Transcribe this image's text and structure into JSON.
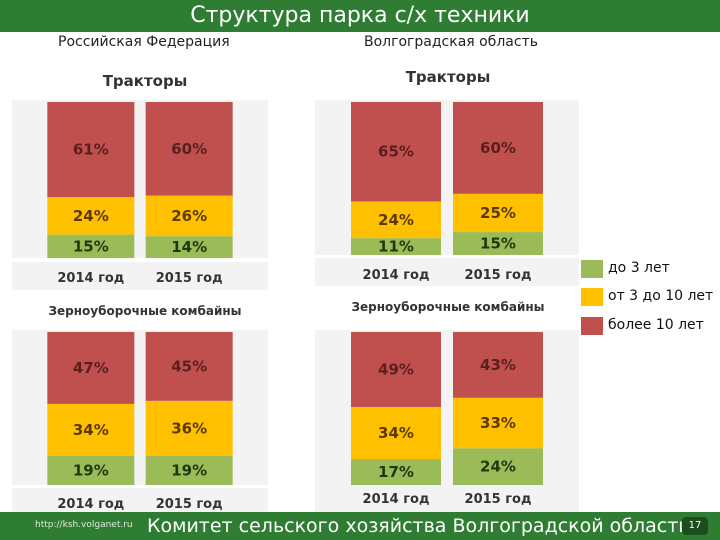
{
  "slide": {
    "title": "Структура парка с/х техники",
    "region_left": "Российская Федерация",
    "region_right": "Волгоградская область",
    "footer_url": "http://ksh.volganet.ru",
    "footer_org": "Комитет сельского хозяйства Волгоградской области",
    "page_number": "17"
  },
  "legend": [
    {
      "label": "до 3 лет",
      "color": "#9bbb59"
    },
    {
      "label": "от 3 до 10 лет",
      "color": "#ffc000"
    },
    {
      "label": "более 10 лет",
      "color": "#c0504d"
    }
  ],
  "chart_data": [
    {
      "type": "bar",
      "stacked": true,
      "region": "Российская Федерация",
      "title": "Тракторы",
      "categories": [
        "2014 год",
        "2015 год"
      ],
      "series": [
        {
          "name": "до 3 лет",
          "values": [
            15,
            14
          ]
        },
        {
          "name": "от 3 до 10 лет",
          "values": [
            24,
            26
          ]
        },
        {
          "name": "более 10 лет",
          "values": [
            61,
            60
          ]
        }
      ],
      "ylim": [
        0,
        100
      ]
    },
    {
      "type": "bar",
      "stacked": true,
      "region": "Волгоградская область",
      "title": "Тракторы",
      "categories": [
        "2014 год",
        "2015 год"
      ],
      "series": [
        {
          "name": "до 3 лет",
          "values": [
            11,
            15
          ]
        },
        {
          "name": "от 3 до 10 лет",
          "values": [
            24,
            25
          ]
        },
        {
          "name": "более 10 лет",
          "values": [
            65,
            60
          ]
        }
      ],
      "ylim": [
        0,
        100
      ]
    },
    {
      "type": "bar",
      "stacked": true,
      "region": "Российская Федерация",
      "title": "Зерноуборочные комбайны",
      "categories": [
        "2014 год",
        "2015 год"
      ],
      "series": [
        {
          "name": "до 3 лет",
          "values": [
            19,
            19
          ]
        },
        {
          "name": "от 3 до 10 лет",
          "values": [
            34,
            36
          ]
        },
        {
          "name": "более 10 лет",
          "values": [
            47,
            45
          ]
        }
      ],
      "ylim": [
        0,
        100
      ]
    },
    {
      "type": "bar",
      "stacked": true,
      "region": "Волгоградская область",
      "title": "Зерноуборочные комбайны",
      "categories": [
        "2014 год",
        "2015 год"
      ],
      "series": [
        {
          "name": "до 3 лет",
          "values": [
            17,
            24
          ]
        },
        {
          "name": "от 3 до 10 лет",
          "values": [
            34,
            33
          ]
        },
        {
          "name": "более 10 лет",
          "values": [
            49,
            43
          ]
        }
      ],
      "ylim": [
        0,
        100
      ]
    }
  ]
}
